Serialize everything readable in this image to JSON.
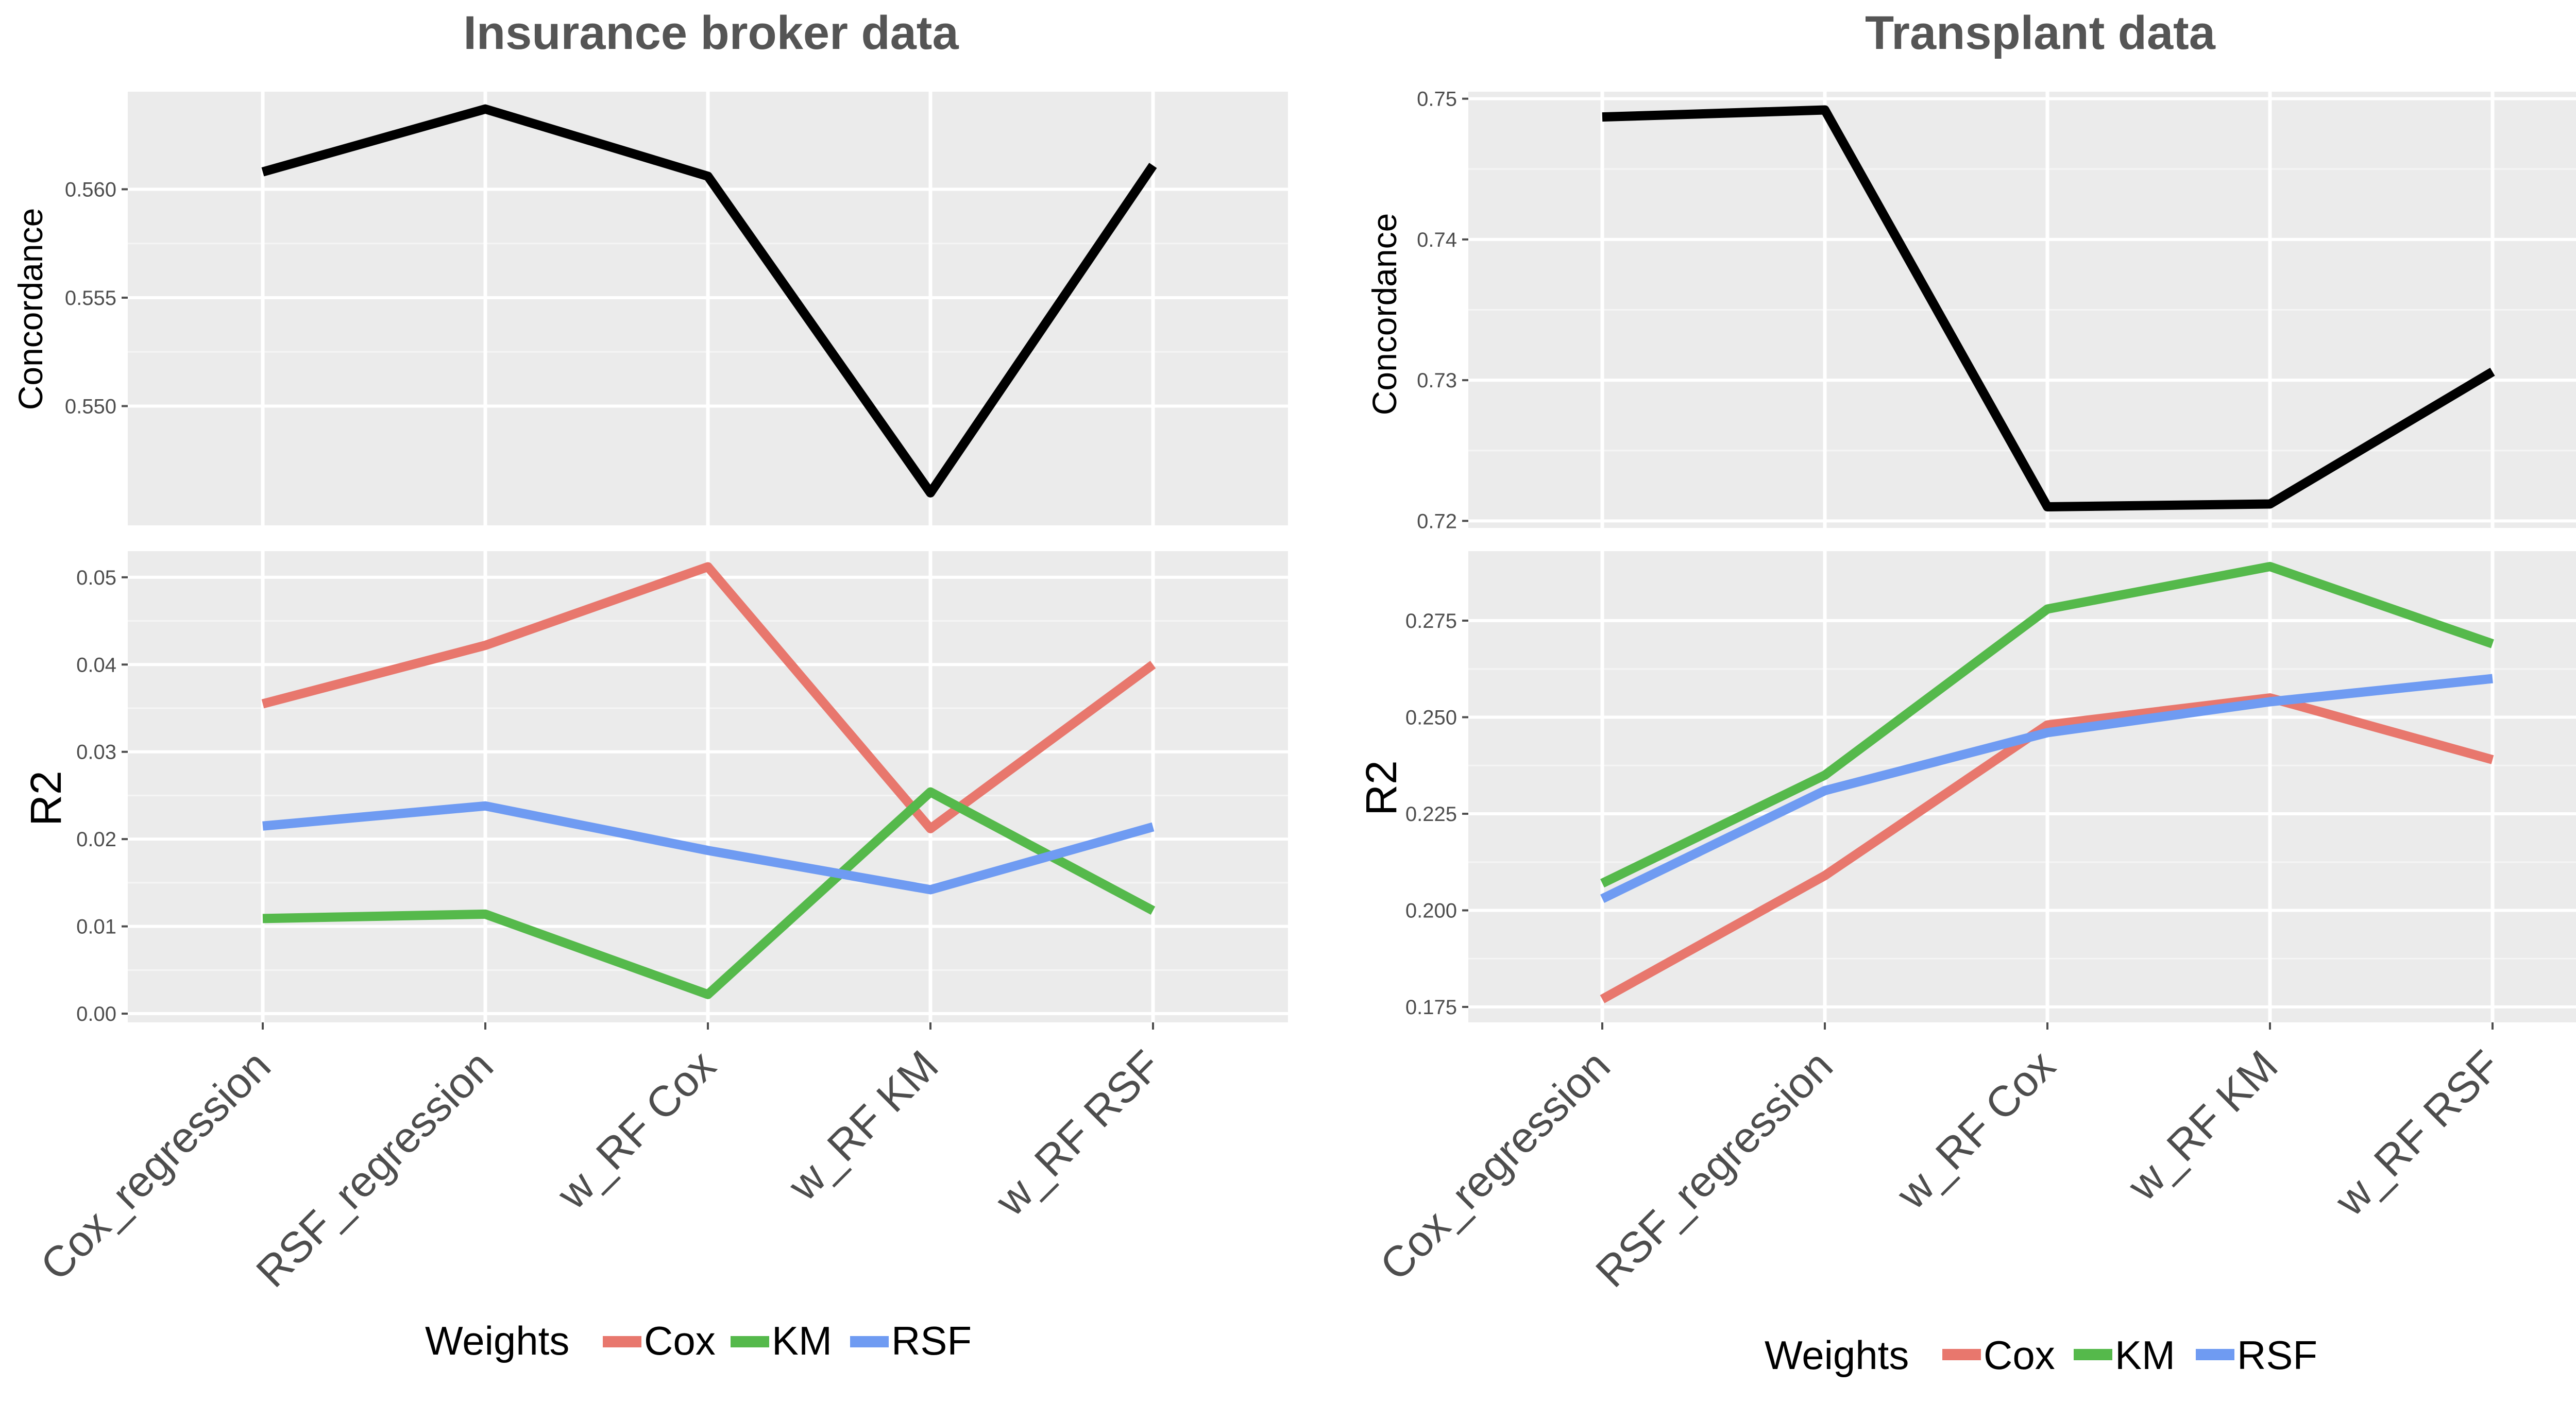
{
  "chart_data": [
    {
      "type": "line",
      "title": "Insurance broker data",
      "categories": [
        "Cox_regression",
        "RSF_regression",
        "w_RF Cox",
        "w_RF KM",
        "w_RF RSF"
      ],
      "panels": [
        {
          "ylabel": "Concordance",
          "ylim": [
            0.5445,
            0.5645
          ],
          "yticks": [
            0.55,
            0.555,
            0.56
          ],
          "ytick_labels": [
            "0.550",
            "0.555",
            "0.560"
          ],
          "series": [
            {
              "color": "#000000",
              "values": [
                0.5608,
                0.5637,
                0.5606,
                0.546,
                0.5611
              ]
            }
          ]
        },
        {
          "ylabel": "R2",
          "ylim": [
            -0.001,
            0.053
          ],
          "yticks": [
            0.0,
            0.01,
            0.02,
            0.03,
            0.04,
            0.05
          ],
          "ytick_labels": [
            "0.00",
            "0.01",
            "0.02",
            "0.03",
            "0.04",
            "0.05"
          ],
          "series": [
            {
              "name": "Cox",
              "color": "#E8776D",
              "values": [
                0.0355,
                0.0422,
                0.0512,
                0.0212,
                0.04
              ]
            },
            {
              "name": "KM",
              "color": "#55B94B",
              "values": [
                0.0109,
                0.0114,
                0.0022,
                0.0254,
                0.0118
              ]
            },
            {
              "name": "RSF",
              "color": "#6F9BF2",
              "values": [
                0.0215,
                0.0238,
                0.0187,
                0.0142,
                0.0214
              ]
            }
          ]
        }
      ],
      "legend": {
        "title": "Weights",
        "position": "bottom",
        "items": [
          "Cox",
          "KM",
          "RSF"
        ]
      }
    },
    {
      "type": "line",
      "title": "Transplant data",
      "categories": [
        "Cox_regression",
        "RSF_regression",
        "w_RF Cox",
        "w_RF KM",
        "w_RF RSF"
      ],
      "panels": [
        {
          "ylabel": "Concordance",
          "ylim": [
            0.7195,
            0.7505
          ],
          "yticks": [
            0.72,
            0.73,
            0.74,
            0.75
          ],
          "ytick_labels": [
            "0.72",
            "0.73",
            "0.74",
            "0.75"
          ],
          "series": [
            {
              "color": "#000000",
              "values": [
                0.7487,
                0.7492,
                0.721,
                0.7212,
                0.7306
              ]
            }
          ]
        },
        {
          "ylabel": "R2",
          "ylim": [
            0.171,
            0.293
          ],
          "yticks": [
            0.175,
            0.2,
            0.225,
            0.25,
            0.275
          ],
          "ytick_labels": [
            "0.175",
            "0.200",
            "0.225",
            "0.250",
            "0.275"
          ],
          "series": [
            {
              "name": "Cox",
              "color": "#E8776D",
              "values": [
                0.177,
                0.209,
                0.248,
                0.255,
                0.239
              ]
            },
            {
              "name": "KM",
              "color": "#55B94B",
              "values": [
                0.207,
                0.235,
                0.278,
                0.289,
                0.269
              ]
            },
            {
              "name": "RSF",
              "color": "#6F9BF2",
              "values": [
                0.203,
                0.231,
                0.246,
                0.254,
                0.26
              ]
            }
          ]
        }
      ],
      "legend": {
        "title": "Weights",
        "position": "bottom",
        "items": [
          "Cox",
          "KM",
          "RSF"
        ]
      }
    }
  ]
}
